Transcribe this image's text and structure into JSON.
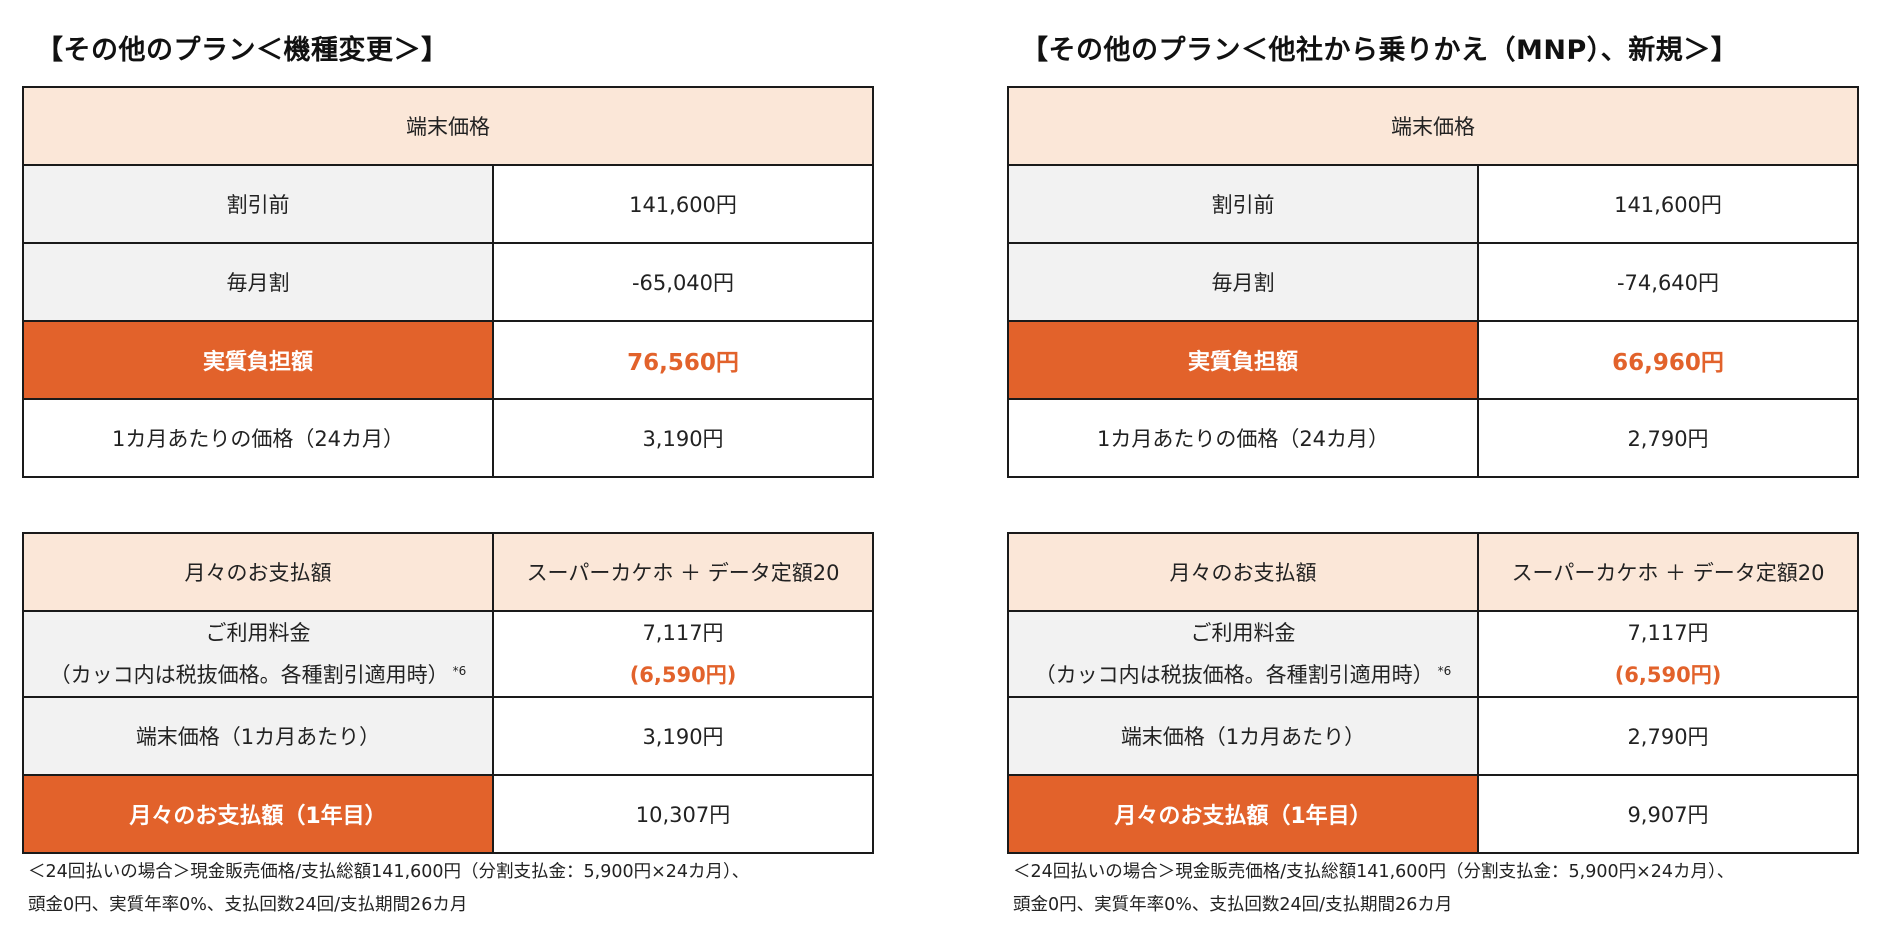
{
  "left": {
    "title": "【その他のプラン＜機種変更＞】",
    "price_table": {
      "header": "端末価格",
      "rows": [
        {
          "label": "割引前",
          "value": "141,600円"
        },
        {
          "label": "毎月割",
          "value": "-65,040円"
        },
        {
          "label": "実質負担額",
          "value": "76,560円"
        },
        {
          "label": "1カ月あたりの価格（24カ月）",
          "value": "3,190円"
        }
      ]
    },
    "monthly_table": {
      "header_label": "月々のお支払額",
      "header_value": "スーパーカケホ ＋ データ定額20",
      "usage_label_line1": "ご利用料金",
      "usage_label_line2": "（カッコ内は税抜価格。各種割引適用時）",
      "usage_sup": "*6",
      "usage_value_line1": "7,117円",
      "usage_value_line2": "(6,590円)",
      "device_label": "端末価格（1カ月あたり）",
      "device_value": "3,190円",
      "total_label": "月々のお支払額（1年目）",
      "total_value": "10,307円"
    },
    "note_line1": "＜24回払いの場合＞現金販売価格/支払総額141,600円（分割支払金：5,900円×24カ月）、",
    "note_line2": "頭金0円、実質年率0%、支払回数24回/支払期間26カ月"
  },
  "right": {
    "title": "【その他のプラン＜他社から乗りかえ（MNP）、新規＞】",
    "price_table": {
      "header": "端末価格",
      "rows": [
        {
          "label": "割引前",
          "value": "141,600円"
        },
        {
          "label": "毎月割",
          "value": "-74,640円"
        },
        {
          "label": "実質負担額",
          "value": "66,960円"
        },
        {
          "label": "1カ月あたりの価格（24カ月）",
          "value": "2,790円"
        }
      ]
    },
    "monthly_table": {
      "header_label": "月々のお支払額",
      "header_value": "スーパーカケホ ＋ データ定額20",
      "usage_label_line1": "ご利用料金",
      "usage_label_line2": "（カッコ内は税抜価格。各種割引適用時）",
      "usage_sup": "*6",
      "usage_value_line1": "7,117円",
      "usage_value_line2": "(6,590円)",
      "device_label": "端末価格（1カ月あたり）",
      "device_value": "2,790円",
      "total_label": "月々のお支払額（1年目）",
      "total_value": "9,907円"
    },
    "note_line1": "＜24回払いの場合＞現金販売価格/支払総額141,600円（分割支払金：5,900円×24カ月）、",
    "note_line2": "頭金0円、実質年率0%、支払回数24回/支払期間26カ月"
  },
  "colors": {
    "accent": "#e2622b",
    "header_bg": "#fbe7d8",
    "label_bg": "#f2f2f2"
  }
}
